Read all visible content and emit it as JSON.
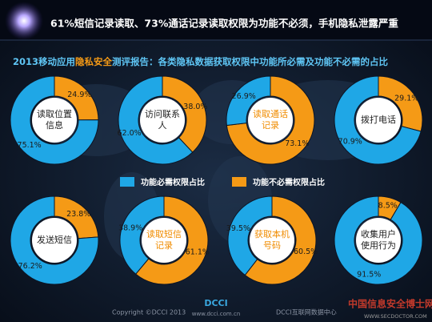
{
  "headline": "61%短信记录读取、73%通话记录读取权限为功能不必须，手机隐私泄露严重",
  "subtitle": [
    "2013移动应用",
    "隐私安全",
    "测评报告：各类隐私数据获取权限中功能所必需及功能不必需的占比"
  ],
  "legend": {
    "categories": [
      "功能必需权限占比",
      "功能不必需权限占比"
    ],
    "colors": [
      "#1fa7e6",
      "#f59a16"
    ]
  },
  "chart_data": [
    {
      "type": "pie",
      "title": [
        "读取位置",
        "信息"
      ],
      "title_color": "#222222",
      "values": [
        75.1,
        24.9
      ],
      "value_labels": [
        "75.1%",
        "24.9%"
      ]
    },
    {
      "type": "pie",
      "title": [
        "访问联系",
        "人"
      ],
      "title_color": "#222222",
      "values": [
        62.0,
        38.0
      ],
      "value_labels": [
        "62.0%",
        "38.0%"
      ]
    },
    {
      "type": "pie",
      "title": [
        "读取通话",
        "记录"
      ],
      "title_color": "#f08c00",
      "values": [
        26.9,
        73.1
      ],
      "value_labels": [
        "26.9%",
        "73.1%"
      ]
    },
    {
      "type": "pie",
      "title": [
        "拨打电话"
      ],
      "title_color": "#222222",
      "values": [
        70.9,
        29.1
      ],
      "value_labels": [
        "70.9%",
        "29.1%"
      ]
    },
    {
      "type": "pie",
      "title": [
        "发送短信"
      ],
      "title_color": "#222222",
      "values": [
        76.2,
        23.8
      ],
      "value_labels": [
        "76.2%",
        "23.8%"
      ]
    },
    {
      "type": "pie",
      "title": [
        "读取短信",
        "记录"
      ],
      "title_color": "#f08c00",
      "values": [
        38.9,
        61.1
      ],
      "value_labels": [
        "38.9%",
        "61.1%"
      ]
    },
    {
      "type": "pie",
      "title": [
        "获取本机",
        "号码"
      ],
      "title_color": "#f08c00",
      "values": [
        39.5,
        60.5
      ],
      "value_labels": [
        "39.5%",
        "60.5%"
      ]
    },
    {
      "type": "pie",
      "title": [
        "收集用户",
        "使用行为"
      ],
      "title_color": "#222222",
      "values": [
        91.5,
        8.5
      ],
      "value_labels": [
        "91.5%",
        "8.5%"
      ]
    }
  ],
  "footer": {
    "copyright": "Copyright ©DCCI 2013",
    "logo": "DCCI",
    "url": "www.dcci.com.cn",
    "org": "DCCI互联网数据中心",
    "watermark": "中国信息安全博士网",
    "watermark_url": "WWW.SECDOCTOR.COM"
  }
}
